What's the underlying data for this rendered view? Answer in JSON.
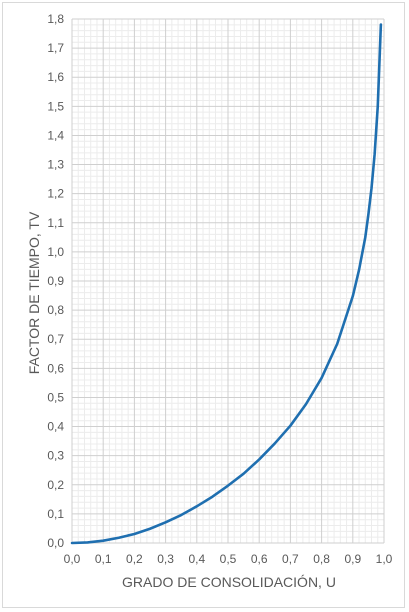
{
  "chart_data": {
    "type": "line",
    "title": "",
    "xlabel": "GRADO DE CONSOLIDACIÓN, U",
    "ylabel": "FACTOR DE TIEMPO, TV",
    "xlim": [
      0,
      1.0
    ],
    "ylim": [
      0,
      1.8
    ],
    "xticks": [
      "0,0",
      "0,1",
      "0,2",
      "0,3",
      "0,4",
      "0,5",
      "0,6",
      "0,7",
      "0,8",
      "0,9",
      "1,0"
    ],
    "yticks": [
      "0,0",
      "0,1",
      "0,2",
      "0,3",
      "0,4",
      "0,5",
      "0,6",
      "0,7",
      "0,8",
      "0,9",
      "1,0",
      "1,1",
      "1,2",
      "1,3",
      "1,4",
      "1,5",
      "1,6",
      "1,7",
      "1,8"
    ],
    "grid": true,
    "minor_grid": true,
    "legend": "none",
    "line_color": "#1f6fb0",
    "series": [
      {
        "x": [
          0.0,
          0.05,
          0.1,
          0.15,
          0.2,
          0.25,
          0.3,
          0.35,
          0.4,
          0.45,
          0.5,
          0.55,
          0.6,
          0.65,
          0.7,
          0.75,
          0.8,
          0.85,
          0.9,
          0.92,
          0.94,
          0.95,
          0.96,
          0.97,
          0.98,
          0.99
        ],
        "y": [
          0.0,
          0.002,
          0.008,
          0.018,
          0.031,
          0.049,
          0.071,
          0.096,
          0.126,
          0.159,
          0.197,
          0.238,
          0.287,
          0.342,
          0.403,
          0.477,
          0.567,
          0.684,
          0.848,
          0.938,
          1.05,
          1.129,
          1.219,
          1.336,
          1.5,
          1.781
        ]
      }
    ]
  }
}
